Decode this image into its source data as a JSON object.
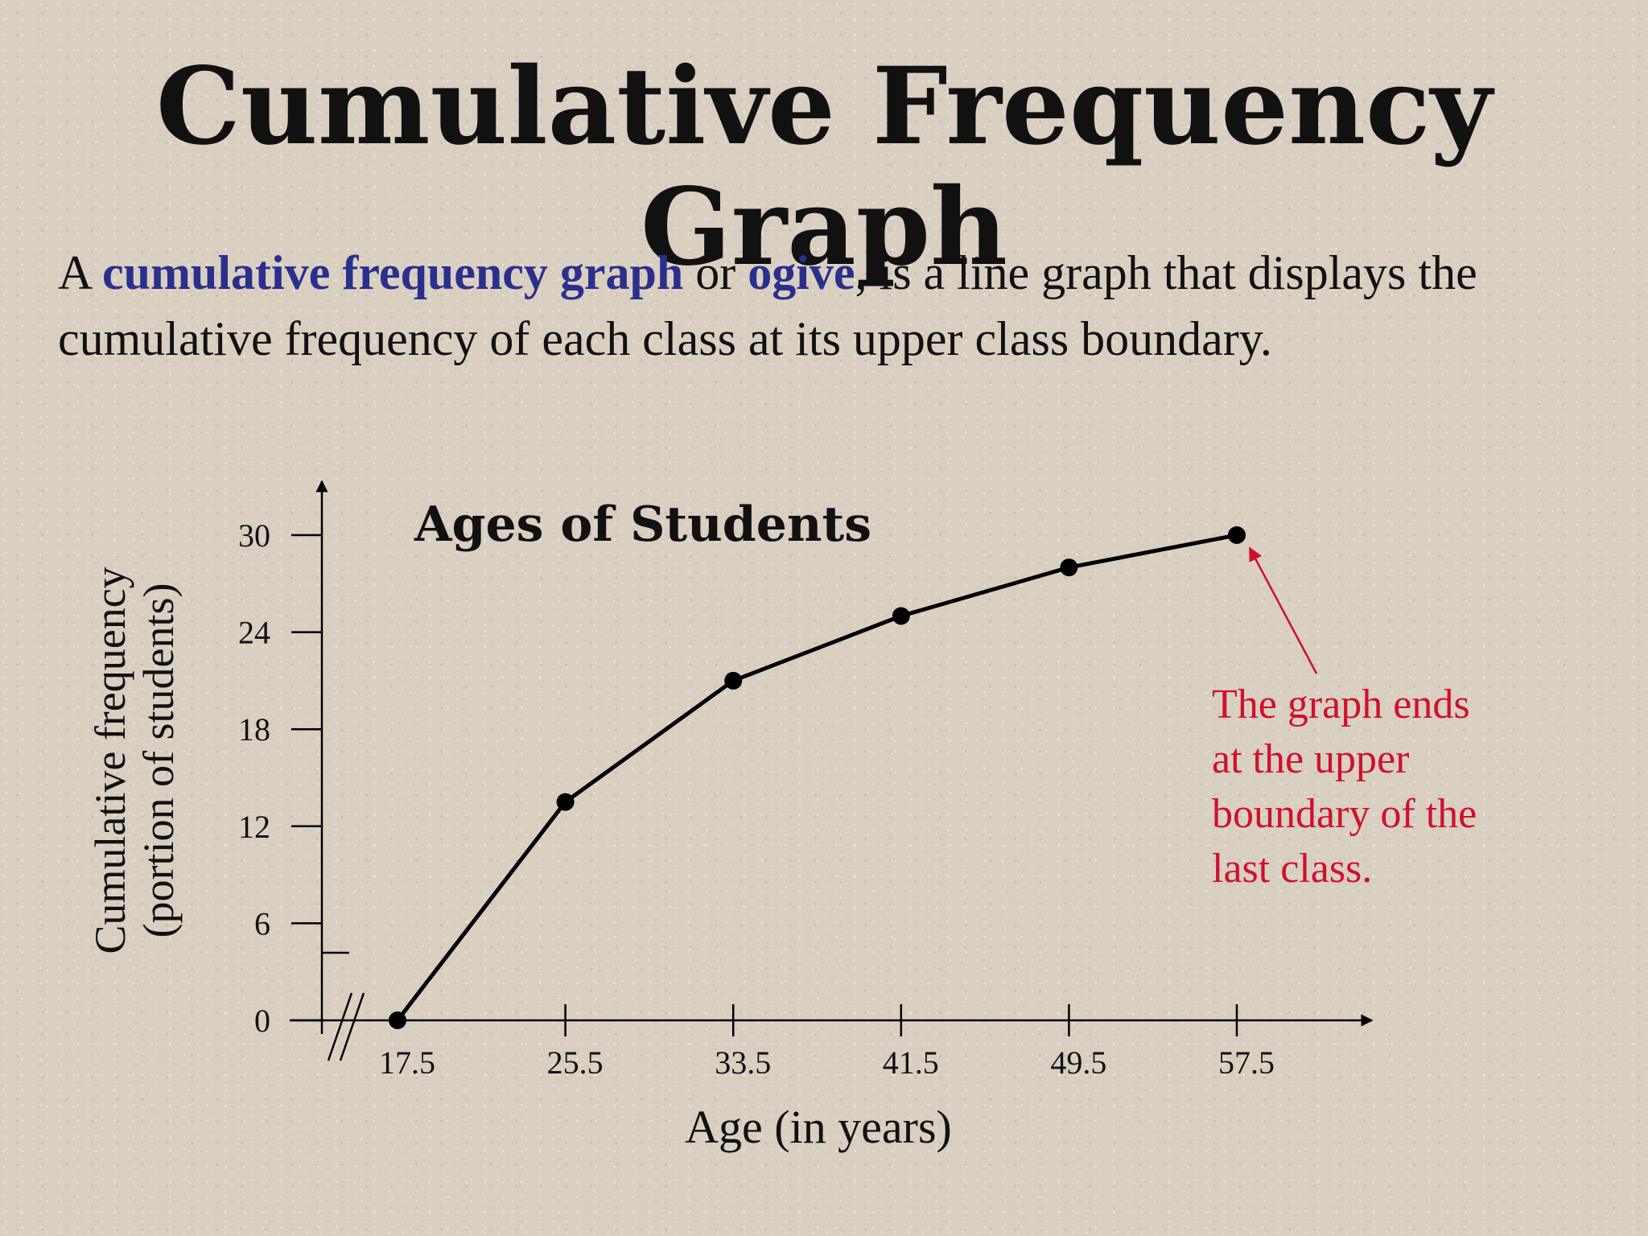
{
  "slide": {
    "title": "Cumulative Frequency Graph",
    "intro": {
      "part1": "A ",
      "term1": "cumulative frequency graph",
      "part2": " or ",
      "term2": "ogive",
      "part3": ", is a line graph that displays the cumulative frequency of each class at its upper class boundary."
    }
  },
  "colors": {
    "term": "#2b2f8c",
    "annotation": "#d0102a",
    "line": "#000000",
    "background": "#d8cfc1"
  },
  "chart_data": {
    "type": "line",
    "title": "Ages of Students",
    "xlabel": "Age (in years)",
    "ylabel_line1": "Cumulative frequency",
    "ylabel_line2": "(portion of students)",
    "x": [
      17.5,
      25.5,
      33.5,
      41.5,
      49.5,
      57.5
    ],
    "x_tick_labels": [
      "17.5",
      "25.5",
      "33.5",
      "41.5",
      "49.5",
      "57.5"
    ],
    "y_ticks": [
      0,
      6,
      12,
      18,
      24,
      30
    ],
    "y_tick_labels": [
      "0",
      "6",
      "12",
      "18",
      "24",
      "30"
    ],
    "series": [
      {
        "values": [
          0,
          13.5,
          21,
          25,
          28,
          30
        ]
      }
    ],
    "ylim": [
      0,
      30
    ],
    "grid": false,
    "x_axis_break": true,
    "annotation": {
      "lines": [
        "The graph ends",
        "at the upper",
        "boundary of the",
        "last class."
      ],
      "points_to_x": 57.5,
      "points_to_y": 30
    }
  }
}
